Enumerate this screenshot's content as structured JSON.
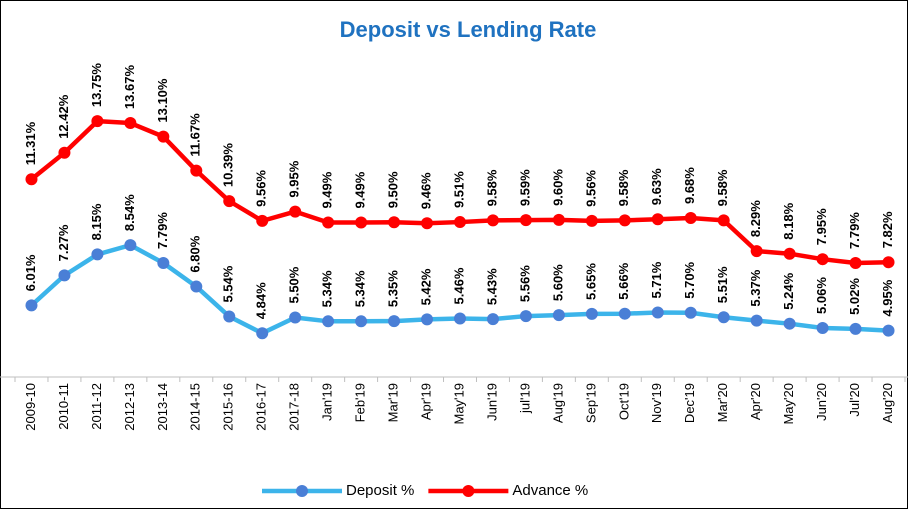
{
  "chart_data": {
    "type": "line",
    "title": "Deposit vs Lending Rate",
    "categories": [
      "2009-10",
      "2010-11",
      "2011-12",
      "2012-13",
      "2013-14",
      "2014-15",
      "2015-16",
      "2016-17",
      "2017-18",
      "Jan'19",
      "Feb'19",
      "Mar'19",
      "Apr'19",
      "May'19",
      "Jun'19",
      "jul'19",
      "Aug'19",
      "Sep'19",
      "Oct'19",
      "Nov'19",
      "Dec'19",
      "Mar'20",
      "Apr'20",
      "May'20",
      "Jun'20",
      "Jul'20",
      "Aug'20"
    ],
    "series": [
      {
        "name": "Deposit %",
        "color": "#3cb4ea",
        "marker_color": "#4a7fd6",
        "values": [
          6.01,
          7.27,
          8.15,
          8.54,
          7.79,
          6.8,
          5.54,
          4.84,
          5.5,
          5.34,
          5.34,
          5.35,
          5.42,
          5.46,
          5.43,
          5.56,
          5.6,
          5.65,
          5.66,
          5.71,
          5.7,
          5.51,
          5.37,
          5.24,
          5.06,
          5.02,
          4.95
        ],
        "value_labels": [
          "6.01%",
          "7.27%",
          "8.15%",
          "8.54%",
          "7.79%",
          "6.80%",
          "5.54%",
          "4.84%",
          "5.50%",
          "5.34%",
          "5.34%",
          "5.35%",
          "5.42%",
          "5.46%",
          "5.43%",
          "5.56%",
          "5.60%",
          "5.65%",
          "5.66%",
          "5.71%",
          "5.70%",
          "5.51%",
          "5.37%",
          "5.24%",
          "5.06%",
          "5.02%",
          "4.95%"
        ]
      },
      {
        "name": "Advance %",
        "color": "#ff0000",
        "marker_color": "#ff0000",
        "values": [
          11.31,
          12.42,
          13.75,
          13.67,
          13.1,
          11.67,
          10.39,
          9.56,
          9.95,
          9.49,
          9.49,
          9.5,
          9.46,
          9.51,
          9.58,
          9.59,
          9.6,
          9.56,
          9.58,
          9.63,
          9.68,
          9.58,
          8.29,
          8.18,
          7.95,
          7.79,
          7.82
        ],
        "value_labels": [
          "11.31%",
          "12.42%",
          "13.75%",
          "13.67%",
          "13.10%",
          "11.67%",
          "10.39%",
          "9.56%",
          "9.95%",
          "9.49%",
          "9.49%",
          "9.50%",
          "9.46%",
          "9.51%",
          "9.58%",
          "9.59%",
          "9.60%",
          "9.56%",
          "9.58%",
          "9.63%",
          "9.68%",
          "9.58%",
          "8.29%",
          "8.18%",
          "7.95%",
          "7.79%",
          "7.82%"
        ]
      }
    ],
    "ylim": [
      3,
      18
    ],
    "legend": "bottom"
  }
}
